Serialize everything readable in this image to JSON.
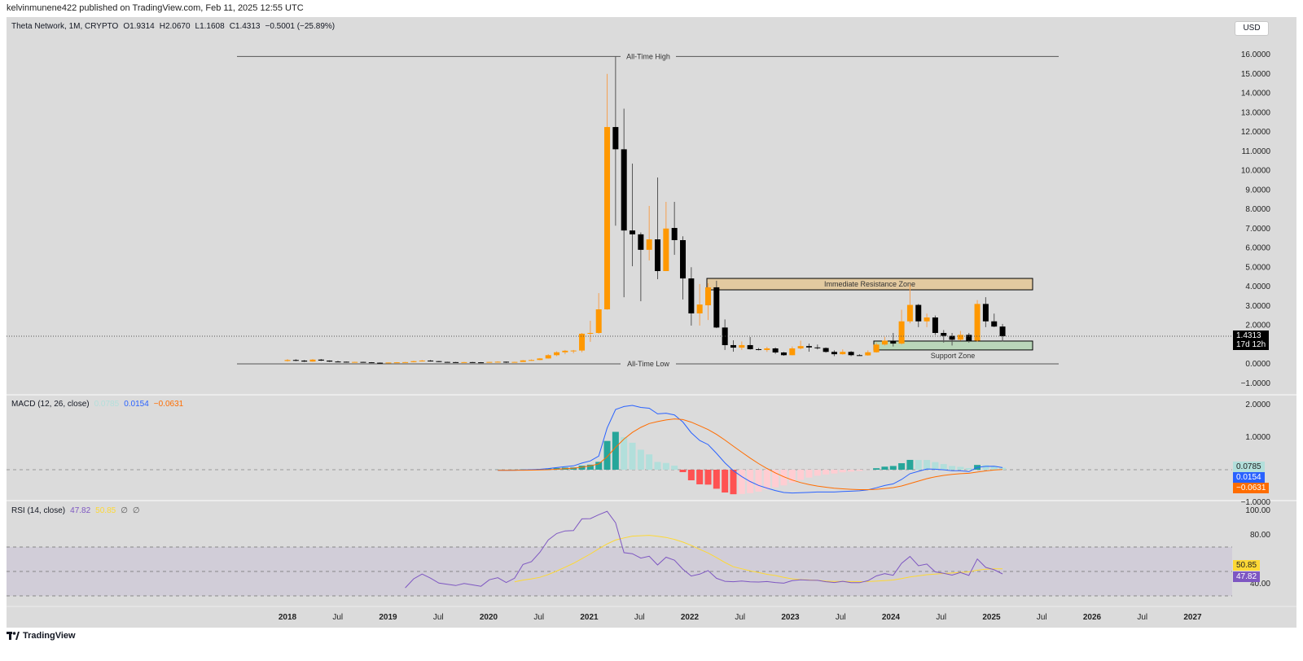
{
  "publisher_line": "kelvinmunene422 published on TradingView.com, Feb 11, 2025 12:55 UTC",
  "legend": {
    "symbol": "Theta Network, 1M, CRYPTO",
    "open": "O1.9314",
    "high": "H2.0670",
    "low": "L1.1608",
    "close": "C1.4313",
    "change": "−0.5001 (−25.89%)"
  },
  "currency_button": "USD",
  "annotations": {
    "ath_label": "All-Time High",
    "ath_price": 15.9,
    "atl_label": "All-Time Low",
    "atl_price": 0,
    "resistance_label": "Immediate Resistance Zone",
    "resistance_range": [
      3.83,
      4.42
    ],
    "support_label": "Support Zone",
    "support_range": [
      0.72,
      1.18
    ]
  },
  "price_axis": {
    "ticks": [
      "16.0000",
      "15.0000",
      "14.0000",
      "13.0000",
      "12.0000",
      "11.0000",
      "10.0000",
      "9.0000",
      "8.0000",
      "7.0000",
      "6.0000",
      "5.0000",
      "4.0000",
      "3.0000",
      "2.0000",
      "0.0000",
      "−1.0000"
    ],
    "last_price": "1.4313",
    "countdown": "17d 12h"
  },
  "macd": {
    "title": "MACD (12, 26, close)",
    "histogram": "0.0785",
    "macd": "0.0154",
    "signal": "−0.0631",
    "ticks": [
      "2.0000",
      "1.0000",
      "−1.0000"
    ]
  },
  "rsi": {
    "title": "RSI (14, close)",
    "rsi": "47.82",
    "ma": "50.85",
    "extra1": "∅",
    "extra2": "∅",
    "ticks": [
      "100.00",
      "80.00",
      "40.00"
    ]
  },
  "time_axis": [
    "2018",
    "Jul",
    "2019",
    "Jul",
    "2020",
    "Jul",
    "2021",
    "Jul",
    "2022",
    "Jul",
    "2023",
    "Jul",
    "2024",
    "Jul",
    "2025",
    "Jul",
    "2026",
    "Jul",
    "2027"
  ],
  "footer": {
    "brand": "TradingView"
  },
  "colors": {
    "up": "#ff9800",
    "down": "#000000",
    "macd": "#2962ff",
    "signal": "#ff6d00",
    "hist_up_strong": "#26a69a",
    "hist_up_weak": "#b2dfdb",
    "hist_down_strong": "#ff5252",
    "hist_down_weak": "#ffcdd2",
    "rsi": "#7e57c2",
    "rsi_ma": "#fdd835",
    "resistance": "#e3caa0",
    "support": "#b9d6b9"
  },
  "chart_data": {
    "type": "candlestick",
    "interval": "1M",
    "start": "2018-01",
    "ohlc": [
      [
        0.15,
        0.25,
        0.12,
        0.2
      ],
      [
        0.2,
        0.24,
        0.14,
        0.17
      ],
      [
        0.17,
        0.2,
        0.1,
        0.12
      ],
      [
        0.12,
        0.25,
        0.11,
        0.22
      ],
      [
        0.22,
        0.25,
        0.15,
        0.17
      ],
      [
        0.17,
        0.18,
        0.1,
        0.12
      ],
      [
        0.12,
        0.16,
        0.1,
        0.11
      ],
      [
        0.11,
        0.12,
        0.07,
        0.09
      ],
      [
        0.09,
        0.11,
        0.07,
        0.1
      ],
      [
        0.1,
        0.11,
        0.08,
        0.08
      ],
      [
        0.08,
        0.09,
        0.05,
        0.06
      ],
      [
        0.06,
        0.07,
        0.04,
        0.05
      ],
      [
        0.05,
        0.07,
        0.04,
        0.07
      ],
      [
        0.07,
        0.09,
        0.06,
        0.08
      ],
      [
        0.08,
        0.1,
        0.07,
        0.09
      ],
      [
        0.09,
        0.16,
        0.08,
        0.14
      ],
      [
        0.14,
        0.2,
        0.12,
        0.17
      ],
      [
        0.17,
        0.2,
        0.12,
        0.14
      ],
      [
        0.14,
        0.15,
        0.09,
        0.1
      ],
      [
        0.1,
        0.11,
        0.08,
        0.09
      ],
      [
        0.09,
        0.1,
        0.07,
        0.08
      ],
      [
        0.08,
        0.1,
        0.07,
        0.09
      ],
      [
        0.09,
        0.1,
        0.07,
        0.08
      ],
      [
        0.08,
        0.09,
        0.06,
        0.07
      ],
      [
        0.07,
        0.1,
        0.07,
        0.1
      ],
      [
        0.1,
        0.13,
        0.09,
        0.11
      ],
      [
        0.11,
        0.12,
        0.05,
        0.08
      ],
      [
        0.08,
        0.11,
        0.07,
        0.1
      ],
      [
        0.1,
        0.2,
        0.1,
        0.18
      ],
      [
        0.18,
        0.23,
        0.16,
        0.2
      ],
      [
        0.2,
        0.3,
        0.19,
        0.28
      ],
      [
        0.28,
        0.5,
        0.27,
        0.45
      ],
      [
        0.45,
        0.65,
        0.4,
        0.6
      ],
      [
        0.6,
        0.72,
        0.5,
        0.68
      ],
      [
        0.68,
        0.72,
        0.55,
        0.69
      ],
      [
        0.69,
        1.6,
        0.6,
        1.56
      ],
      [
        1.56,
        2.23,
        1.14,
        1.6
      ],
      [
        1.6,
        3.66,
        1.56,
        2.82
      ],
      [
        2.82,
        15.0,
        2.8,
        12.25
      ],
      [
        12.25,
        15.9,
        7.15,
        11.1
      ],
      [
        11.1,
        13.2,
        3.45,
        6.9
      ],
      [
        6.9,
        10.36,
        5.05,
        6.7
      ],
      [
        6.7,
        6.8,
        3.24,
        5.9
      ],
      [
        5.9,
        8.17,
        5.35,
        6.44
      ],
      [
        6.44,
        9.64,
        4.38,
        4.8
      ],
      [
        4.8,
        8.38,
        4.8,
        7.0
      ],
      [
        7.03,
        8.38,
        5.64,
        6.4
      ],
      [
        6.4,
        6.6,
        3.33,
        4.42
      ],
      [
        4.42,
        5.0,
        1.98,
        2.61
      ],
      [
        2.61,
        4.13,
        1.98,
        3.07
      ],
      [
        3.03,
        4.17,
        2.27,
        3.96
      ],
      [
        3.96,
        4.3,
        1.85,
        1.88
      ],
      [
        1.88,
        2.3,
        0.72,
        0.97
      ],
      [
        0.97,
        1.22,
        0.63,
        0.84
      ],
      [
        0.84,
        1.16,
        0.72,
        0.97
      ],
      [
        0.97,
        1.39,
        0.74,
        0.76
      ],
      [
        0.76,
        0.82,
        0.7,
        0.72
      ],
      [
        0.72,
        0.88,
        0.62,
        0.8
      ],
      [
        0.8,
        0.85,
        0.52,
        0.59
      ],
      [
        0.59,
        0.62,
        0.42,
        0.45
      ],
      [
        0.45,
        0.9,
        0.44,
        0.8
      ],
      [
        0.8,
        1.2,
        0.75,
        0.92
      ],
      [
        0.92,
        1.05,
        0.63,
        0.85
      ],
      [
        0.85,
        1.0,
        0.75,
        0.82
      ],
      [
        0.82,
        0.85,
        0.58,
        0.62
      ],
      [
        0.62,
        0.7,
        0.4,
        0.5
      ],
      [
        0.5,
        0.75,
        0.48,
        0.62
      ],
      [
        0.62,
        0.66,
        0.4,
        0.45
      ],
      [
        0.45,
        0.5,
        0.42,
        0.44
      ],
      [
        0.44,
        0.7,
        0.42,
        0.6
      ],
      [
        0.6,
        1.1,
        0.58,
        1.0
      ],
      [
        1.0,
        1.4,
        0.95,
        1.2
      ],
      [
        1.2,
        1.6,
        0.9,
        1.05
      ],
      [
        1.05,
        2.8,
        1.0,
        2.2
      ],
      [
        2.2,
        4.1,
        2.1,
        3.05
      ],
      [
        3.05,
        3.1,
        1.9,
        2.2
      ],
      [
        2.2,
        2.6,
        1.9,
        2.4
      ],
      [
        2.4,
        2.5,
        1.5,
        1.6
      ],
      [
        1.6,
        1.75,
        1.1,
        1.45
      ],
      [
        1.45,
        1.6,
        0.95,
        1.25
      ],
      [
        1.25,
        1.7,
        1.2,
        1.5
      ],
      [
        1.5,
        1.6,
        1.1,
        1.2
      ],
      [
        1.2,
        3.3,
        1.15,
        3.1
      ],
      [
        3.1,
        3.45,
        1.9,
        2.2
      ],
      [
        2.2,
        2.6,
        1.9,
        1.93
      ],
      [
        1.9314,
        2.067,
        1.1608,
        1.4313
      ]
    ],
    "price_range": [
      -1.5,
      16.5
    ],
    "macd_range": [
      -1,
      2.2
    ],
    "rsi_range": [
      20,
      100
    ],
    "rsi_band": [
      30,
      70
    ]
  }
}
